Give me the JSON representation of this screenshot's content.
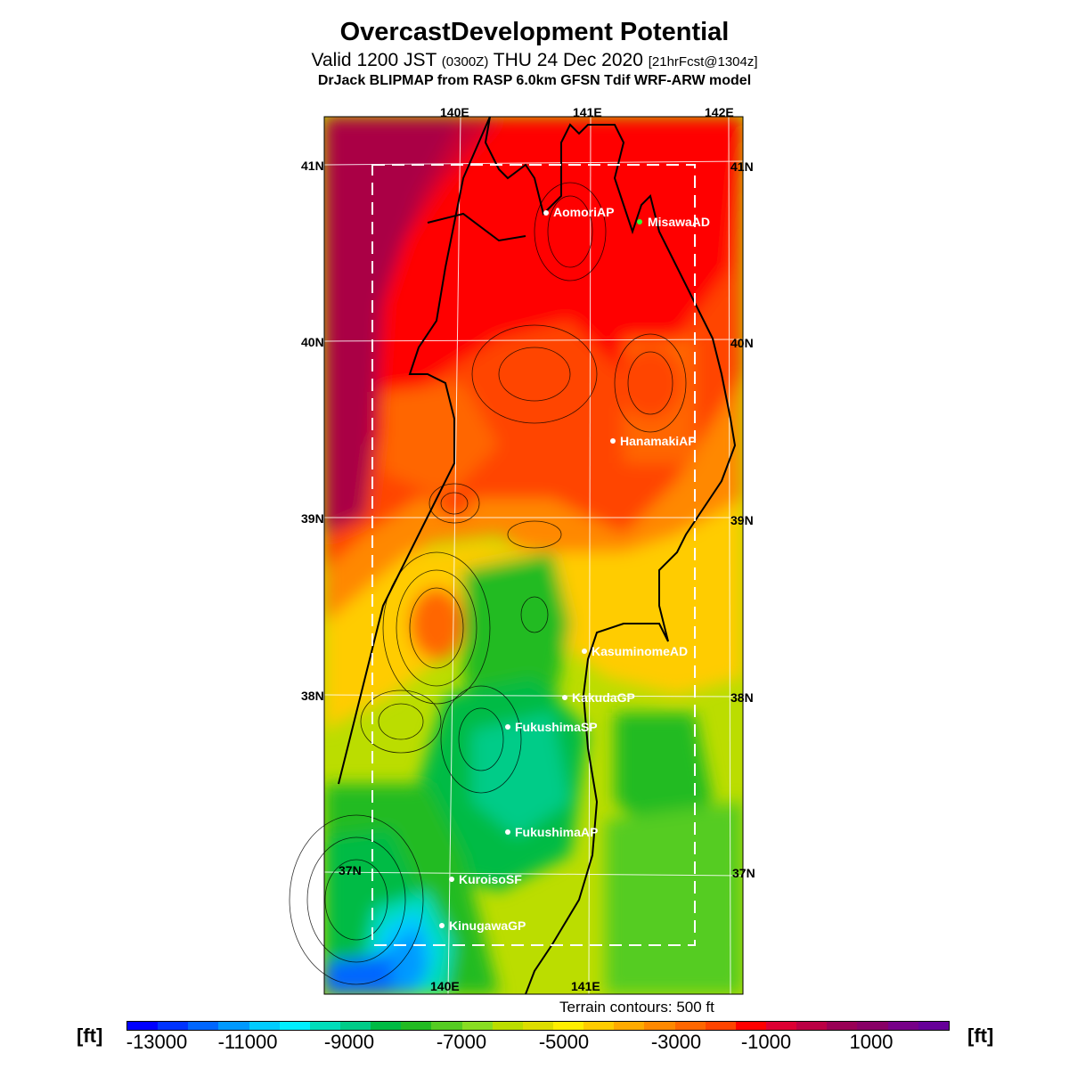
{
  "header": {
    "title": "OvercastDevelopment Potential",
    "valid_prefix": "Valid 1200 JST",
    "valid_utc": "(0300Z)",
    "valid_date": "THU 24 Dec 2020",
    "forecast_info": "[21hrFcst@1304z]",
    "source": "DrJack BLIPMAP from RASP 6.0km GFSN Tdif WRF-ARW model"
  },
  "map": {
    "lon_labels_top": [
      "140E",
      "141E",
      "142E"
    ],
    "lon_labels_bottom": [
      "140E",
      "141E"
    ],
    "lat_labels_left": [
      "41N",
      "40N",
      "39N",
      "38N",
      "37N"
    ],
    "lat_labels_right": [
      "41N",
      "40N",
      "39N",
      "38N",
      "37N"
    ],
    "terrain_note": "Terrain contours: 500 ft"
  },
  "stations": [
    {
      "name": "AomoriAP",
      "dot_color": "#ffffff"
    },
    {
      "name": "MisawaAD",
      "dot_color": "#33ff33"
    },
    {
      "name": "HanamakiAP",
      "dot_color": "#ffffff"
    },
    {
      "name": "KasuminomeAD",
      "dot_color": "#ffffff"
    },
    {
      "name": "KakudaGP",
      "dot_color": "#ffffff"
    },
    {
      "name": "FukushimaSP",
      "dot_color": "#ffffff"
    },
    {
      "name": "FukushimaAP",
      "dot_color": "#ffffff"
    },
    {
      "name": "KuroisoSF",
      "dot_color": "#ffffff"
    },
    {
      "name": "KinugawaGP",
      "dot_color": "#ffffff"
    }
  ],
  "colorbar": {
    "unit": "[ft]",
    "tick_labels": [
      "-13000",
      "-11000",
      "-9000",
      "-7000",
      "-5000",
      "-3000",
      "-1000",
      "1000"
    ],
    "colors": [
      "#0000ff",
      "#0033ff",
      "#0066ff",
      "#0099ff",
      "#00ccff",
      "#00eeff",
      "#00ddbb",
      "#00cc88",
      "#00bb44",
      "#22bb22",
      "#55cc22",
      "#88dd22",
      "#bbdd00",
      "#dddd00",
      "#ffee00",
      "#ffcc00",
      "#ffaa00",
      "#ff8800",
      "#ff6600",
      "#ff4400",
      "#ff0000",
      "#dd0033",
      "#bb0044",
      "#990055",
      "#880066",
      "#770088",
      "#660099"
    ]
  }
}
